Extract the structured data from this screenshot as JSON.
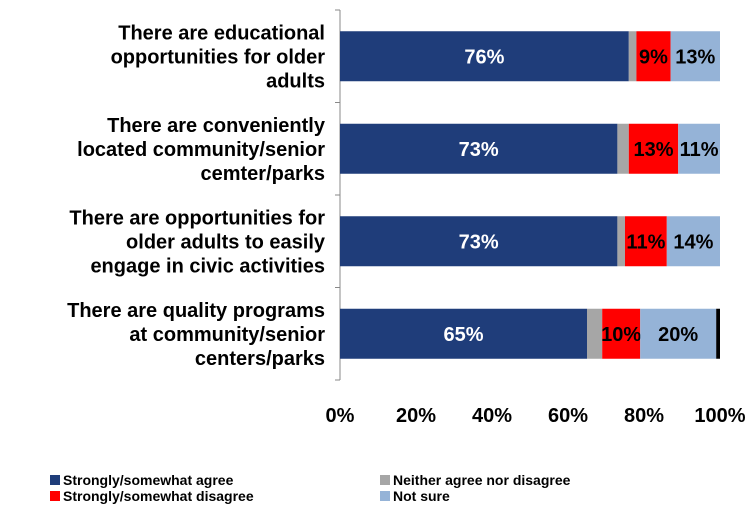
{
  "chart_data": {
    "type": "bar",
    "orientation": "horizontal",
    "stacked": true,
    "categories": [
      [
        "There are educational",
        "opportunities for older",
        "adults"
      ],
      [
        "There are conveniently",
        "located community/senior",
        "cemter/parks"
      ],
      [
        "There are opportunities for",
        "older adults to easily",
        "engage in civic activities"
      ],
      [
        "There are quality programs",
        "at community/senior",
        "centers/parks"
      ]
    ],
    "series": [
      {
        "name": "Strongly/somewhat agree",
        "color": "#1F3D7A",
        "label_color": "#FFFFFF",
        "values": [
          76,
          73,
          73,
          65
        ],
        "labels": [
          "76%",
          "73%",
          "73%",
          "65%"
        ]
      },
      {
        "name": "Neither agree nor disagree",
        "color": "#A6A6A6",
        "label_color": "#000000",
        "values": [
          2,
          3,
          2,
          4
        ],
        "labels": [
          "",
          "",
          "",
          ""
        ]
      },
      {
        "name": "Strongly/somewhat disagree",
        "color": "#FF0000",
        "label_color": "#000000",
        "values": [
          9,
          13,
          11,
          10
        ],
        "labels": [
          "9%",
          "13%",
          "11%",
          "10%"
        ]
      },
      {
        "name": "Not sure",
        "color": "#95B3D7",
        "label_color": "#000000",
        "values": [
          13,
          11,
          14,
          20
        ],
        "labels": [
          "13%",
          "11%",
          "14%",
          "20%"
        ]
      },
      {
        "color": "#000000",
        "label_color": "#000000",
        "values": [
          0,
          0,
          0,
          1
        ],
        "labels": [
          "",
          "",
          "",
          ""
        ]
      }
    ],
    "xlim": [
      0,
      100
    ],
    "xticks": [
      "0%",
      "20%",
      "40%",
      "60%",
      "80%",
      "100%"
    ],
    "grid": false,
    "legend_position": "bottom"
  }
}
